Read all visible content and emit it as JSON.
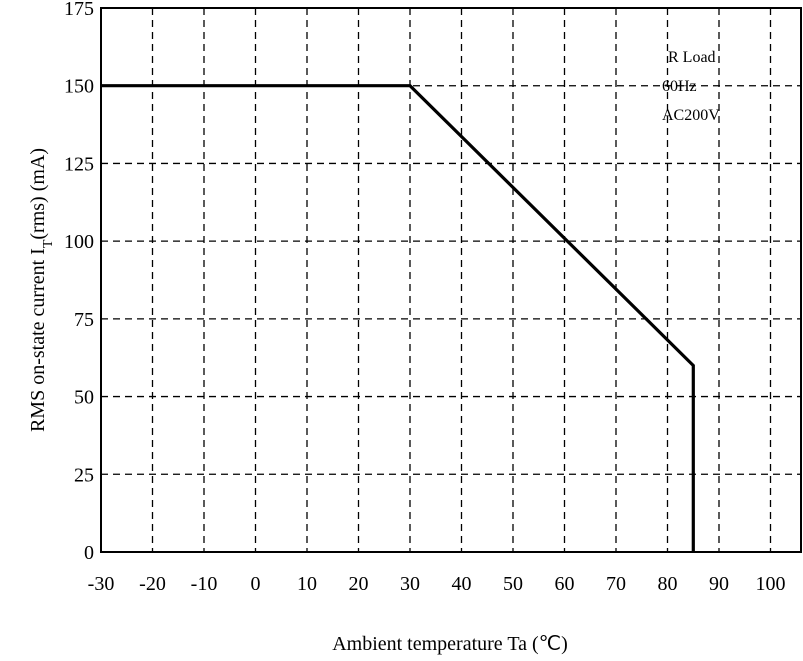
{
  "chart_data": {
    "type": "line",
    "title": "",
    "xlabel": "Ambient temperature   Ta (℃)",
    "ylabel_main": "RMS  on-state  current  I",
    "ylabel_sub": "T",
    "ylabel_tail": "(rms)   (mA)",
    "x_ticks": [
      "-30",
      "-20",
      "-10",
      "0",
      "10",
      "20",
      "30",
      "40",
      "50",
      "60",
      "70",
      "80",
      "90",
      "100"
    ],
    "y_ticks": [
      "0",
      "25",
      "50",
      "75",
      "100",
      "125",
      "150",
      "175"
    ],
    "xlim": [
      -30,
      100
    ],
    "ylim": [
      0,
      175
    ],
    "grid": true,
    "annotations": [
      "R  Load",
      "60Hz",
      "AC200V"
    ],
    "series": [
      {
        "x": [
          -30,
          30,
          85,
          85
        ],
        "y": [
          150,
          150,
          60,
          0
        ]
      }
    ]
  }
}
